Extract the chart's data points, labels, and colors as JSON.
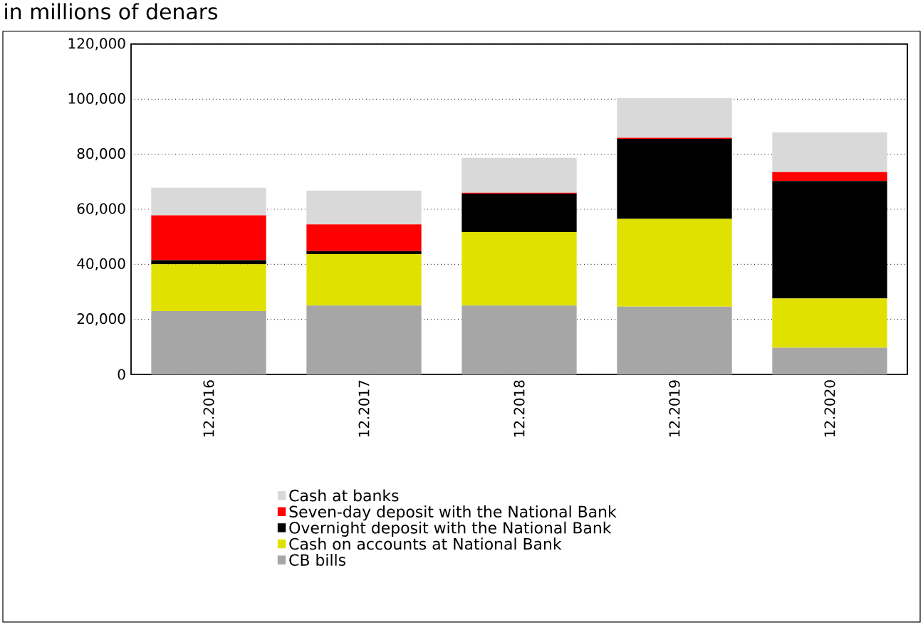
{
  "chart_data": {
    "type": "bar",
    "stacked": true,
    "title": "in millions of denars",
    "categories": [
      "12.2016",
      "12.2017",
      "12.2018",
      "12.2019",
      "12.2020"
    ],
    "series": [
      {
        "name": "CB bills",
        "color": "#a6a6a6",
        "values": [
          23000,
          25000,
          25000,
          24600,
          9700
        ]
      },
      {
        "name": "Cash on accounts at National Bank",
        "color": "#e1e100",
        "values": [
          17000,
          18700,
          26700,
          31900,
          17900
        ]
      },
      {
        "name": "Overnight deposit with the National Bank",
        "color": "#000000",
        "values": [
          1500,
          1100,
          14000,
          29100,
          42700
        ]
      },
      {
        "name": "Seven-day deposit with the National Bank",
        "color": "#ff0000",
        "values": [
          16300,
          9700,
          300,
          400,
          3200
        ]
      },
      {
        "name": "Cash at banks",
        "color": "#d9d9d9",
        "values": [
          10000,
          12300,
          12700,
          14400,
          14400
        ]
      }
    ],
    "ylim": [
      0,
      120000
    ],
    "yticks": [
      0,
      {
        "value": 20000,
        "label": "20,000"
      },
      {
        "value": 40000,
        "label": "40,000"
      },
      {
        "value": 60000,
        "label": "60,000"
      },
      {
        "value": 80000,
        "label": "80,000"
      },
      {
        "value": 100000,
        "label": "100,000"
      },
      {
        "value": 120000,
        "label": "120,000"
      }
    ],
    "grid": "y",
    "legend": "bottom"
  }
}
